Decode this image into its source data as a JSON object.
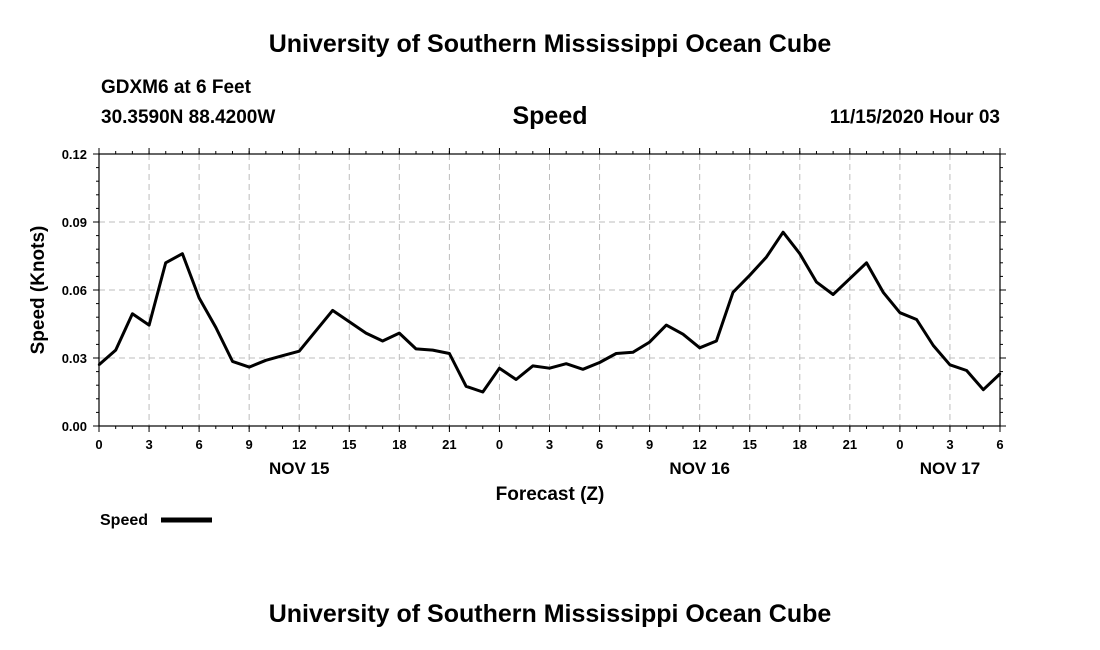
{
  "header": {
    "title": "University of Southern Mississippi Ocean Cube",
    "station": "GDXM6 at 6 Feet",
    "coords": "30.3590N 88.4200W",
    "timestamp": "11/15/2020 Hour 03"
  },
  "footer": {
    "title": "University of Southern Mississippi Ocean Cube"
  },
  "chart_data": {
    "type": "line",
    "title": "Speed",
    "xlabel": "Forecast (Z)",
    "ylabel": "Speed (Knots)",
    "ylim": [
      0,
      0.12
    ],
    "xlim": [
      0,
      54
    ],
    "x_unit": "hours since 00Z Nov 15",
    "grid": true,
    "yticks": [
      {
        "value": 0.0,
        "label": "0.00"
      },
      {
        "value": 0.03,
        "label": "0.03"
      },
      {
        "value": 0.06,
        "label": "0.06"
      },
      {
        "value": 0.09,
        "label": "0.09"
      },
      {
        "value": 0.12,
        "label": "0.12"
      }
    ],
    "xticks": [
      {
        "value": 0,
        "label": "0"
      },
      {
        "value": 3,
        "label": "3"
      },
      {
        "value": 6,
        "label": "6"
      },
      {
        "value": 9,
        "label": "9"
      },
      {
        "value": 12,
        "label": "12"
      },
      {
        "value": 15,
        "label": "15"
      },
      {
        "value": 18,
        "label": "18"
      },
      {
        "value": 21,
        "label": "21"
      },
      {
        "value": 24,
        "label": "0"
      },
      {
        "value": 27,
        "label": "3"
      },
      {
        "value": 30,
        "label": "6"
      },
      {
        "value": 33,
        "label": "9"
      },
      {
        "value": 36,
        "label": "12"
      },
      {
        "value": 39,
        "label": "15"
      },
      {
        "value": 42,
        "label": "18"
      },
      {
        "value": 45,
        "label": "21"
      },
      {
        "value": 48,
        "label": "0"
      },
      {
        "value": 51,
        "label": "3"
      },
      {
        "value": 54,
        "label": "6"
      }
    ],
    "day_labels": [
      {
        "value": 12,
        "label": "NOV 15"
      },
      {
        "value": 36,
        "label": "NOV 16"
      },
      {
        "value": 51,
        "label": "NOV 17"
      }
    ],
    "legend": {
      "label": "Speed",
      "position": "bottom-left"
    },
    "series": [
      {
        "name": "Speed",
        "color": "#000000",
        "x": [
          0,
          1,
          2,
          3,
          4,
          5,
          6,
          7,
          8,
          9,
          10,
          11,
          12,
          13,
          14,
          15,
          16,
          17,
          18,
          19,
          20,
          21,
          22,
          23,
          24,
          25,
          26,
          27,
          28,
          29,
          30,
          31,
          32,
          33,
          34,
          35,
          36,
          37,
          38,
          39,
          40,
          41,
          42,
          43,
          44,
          45,
          46,
          47,
          48,
          49,
          50,
          51,
          52,
          53,
          54
        ],
        "values": [
          0.027,
          0.0335,
          0.0495,
          0.0445,
          0.072,
          0.076,
          0.0565,
          0.0435,
          0.0285,
          0.026,
          0.029,
          0.031,
          0.033,
          0.042,
          0.051,
          0.046,
          0.041,
          0.0375,
          0.041,
          0.034,
          0.0335,
          0.032,
          0.0175,
          0.015,
          0.0255,
          0.0205,
          0.0265,
          0.0255,
          0.0275,
          0.025,
          0.028,
          0.032,
          0.0325,
          0.037,
          0.0445,
          0.0405,
          0.0345,
          0.0375,
          0.059,
          0.0665,
          0.0745,
          0.0855,
          0.076,
          0.0635,
          0.058,
          0.065,
          0.072,
          0.059,
          0.05,
          0.047,
          0.0355,
          0.027,
          0.0245,
          0.016,
          0.023
        ]
      }
    ]
  }
}
